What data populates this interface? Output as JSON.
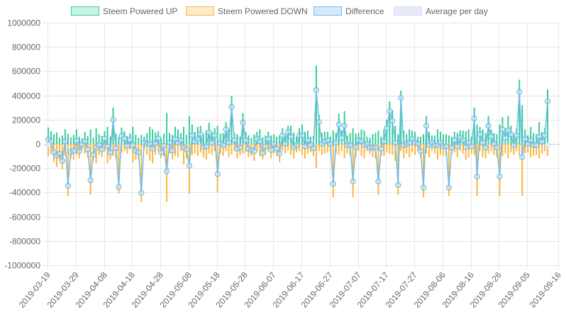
{
  "chart_data": {
    "type": "bar",
    "title": "",
    "xlabel": "",
    "ylabel": "",
    "ylim": [
      -1000000,
      1000000
    ],
    "ytick_labels": [
      "1000000",
      "800000",
      "600000",
      "400000",
      "200000",
      "0",
      "-200000",
      "-400000",
      "-600000",
      "-800000",
      "-1000000"
    ],
    "ytick_values": [
      1000000,
      800000,
      600000,
      400000,
      200000,
      0,
      -200000,
      -400000,
      -600000,
      -800000,
      -1000000
    ],
    "xtick_labels": [
      "2019-03-19",
      "2019-03-29",
      "2019-04-08",
      "2019-04-18",
      "2019-04-28",
      "2019-05-08",
      "2019-05-18",
      "2019-05-28",
      "2019-06-07",
      "2019-06-17",
      "2019-06-27",
      "2019-07-07",
      "2019-07-17",
      "2019-07-27",
      "2019-08-06",
      "2019-08-16",
      "2019-08-26",
      "2019-09-05",
      "2019-09-16"
    ],
    "xtick_day_index": [
      0,
      10,
      20,
      30,
      40,
      50,
      60,
      70,
      80,
      90,
      100,
      110,
      120,
      130,
      140,
      150,
      160,
      170,
      181
    ],
    "start_date": "2019-03-19",
    "grid": true,
    "legend_position": "top",
    "legend": [
      {
        "label": "Steem Powered UP",
        "fill": "#c9f4e4",
        "stroke": "#36cc9c"
      },
      {
        "label": "Steem Powered DOWN",
        "fill": "#fdebcc",
        "stroke": "#f9b640"
      },
      {
        "label": "Difference",
        "fill": "#d5e9f8",
        "stroke": "#71bce6"
      },
      {
        "label": "Average per day",
        "fill": "#e8eaf9",
        "stroke": "#d8dbf3"
      }
    ],
    "series": [
      {
        "name": "Steem Powered UP",
        "type": "bar",
        "color": "#36cc9c",
        "values": [
          135000,
          105000,
          80000,
          95000,
          50000,
          70000,
          120000,
          85000,
          55000,
          75000,
          120000,
          60000,
          45000,
          100000,
          65000,
          120000,
          50000,
          130000,
          80000,
          65000,
          105000,
          140000,
          60000,
          300000,
          85000,
          55000,
          135000,
          105000,
          65000,
          85000,
          140000,
          75000,
          50000,
          75000,
          60000,
          90000,
          140000,
          120000,
          95000,
          105000,
          50000,
          85000,
          255000,
          90000,
          75000,
          140000,
          120000,
          90000,
          140000,
          75000,
          230000,
          160000,
          100000,
          140000,
          150000,
          85000,
          110000,
          175000,
          100000,
          130000,
          150000,
          85000,
          90000,
          180000,
          120000,
          395000,
          90000,
          80000,
          60000,
          255000,
          100000,
          70000,
          50000,
          80000,
          100000,
          120000,
          55000,
          70000,
          100000,
          70000,
          80000,
          60000,
          70000,
          130000,
          80000,
          150000,
          150000,
          95000,
          60000,
          130000,
          160000,
          100000,
          110000,
          60000,
          65000,
          645000,
          240000,
          90000,
          100000,
          100000,
          60000,
          110000,
          90000,
          250000,
          110000,
          270000,
          70000,
          90000,
          130000,
          85000,
          90000,
          120000,
          110000,
          60000,
          50000,
          80000,
          90000,
          110000,
          60000,
          120000,
          200000,
          350000,
          280000,
          150000,
          80000,
          440000,
          110000,
          80000,
          120000,
          110000,
          100000,
          60000,
          60000,
          80000,
          230000,
          100000,
          70000,
          70000,
          120000,
          100000,
          80000,
          80000,
          70000,
          60000,
          100000,
          90000,
          110000,
          110000,
          105000,
          120000,
          60000,
          300000,
          160000,
          140000,
          120000,
          90000,
          230000,
          120000,
          90000,
          80000,
          160000,
          220000,
          130000,
          230000,
          150000,
          80000,
          130000,
          530000,
          320000,
          120000,
          70000,
          140000,
          90000,
          80000,
          180000,
          100000,
          130000,
          450000
        ]
      },
      {
        "name": "Steem Powered DOWN",
        "type": "bar",
        "color": "#f9b640",
        "values": [
          -100000,
          -85000,
          -150000,
          -190000,
          -130000,
          -210000,
          -100000,
          -430000,
          -120000,
          -130000,
          -95000,
          -120000,
          -50000,
          -80000,
          -110000,
          -420000,
          -140000,
          -160000,
          -90000,
          -110000,
          -60000,
          -160000,
          -130000,
          -100000,
          -120000,
          -410000,
          -70000,
          -60000,
          -80000,
          -50000,
          -150000,
          -130000,
          -120000,
          -480000,
          -50000,
          -90000,
          -140000,
          -160000,
          -90000,
          -60000,
          -120000,
          -100000,
          -480000,
          -80000,
          -130000,
          -100000,
          -110000,
          -60000,
          -170000,
          -120000,
          -410000,
          -90000,
          -80000,
          -100000,
          -70000,
          -110000,
          -130000,
          -80000,
          -90000,
          -60000,
          -400000,
          -80000,
          -100000,
          -60000,
          -110000,
          -90000,
          -60000,
          -120000,
          -90000,
          -80000,
          -70000,
          -110000,
          -100000,
          -140000,
          -60000,
          -100000,
          -130000,
          -90000,
          -60000,
          -120000,
          -80000,
          -100000,
          -150000,
          -60000,
          -80000,
          -50000,
          -90000,
          -120000,
          -70000,
          -60000,
          -90000,
          -120000,
          -80000,
          -70000,
          -100000,
          -200000,
          -60000,
          -90000,
          -80000,
          -70000,
          -60000,
          -440000,
          -80000,
          -90000,
          -60000,
          -120000,
          -80000,
          -100000,
          -440000,
          -110000,
          -60000,
          -100000,
          -120000,
          -60000,
          -80000,
          -110000,
          -120000,
          -420000,
          -100000,
          -100000,
          -70000,
          -80000,
          -90000,
          -140000,
          -420000,
          -60000,
          -120000,
          -80000,
          -110000,
          -70000,
          -90000,
          -60000,
          -120000,
          -440000,
          -80000,
          -110000,
          -60000,
          -80000,
          -130000,
          -90000,
          -100000,
          -100000,
          -430000,
          -90000,
          -70000,
          -110000,
          -60000,
          -80000,
          -130000,
          -110000,
          -80000,
          -90000,
          -430000,
          -60000,
          -110000,
          -120000,
          -80000,
          -60000,
          -90000,
          -110000,
          -430000,
          -100000,
          -80000,
          -120000,
          -70000,
          -90000,
          -60000,
          -100000,
          -430000,
          -80000,
          -70000,
          -110000,
          -100000,
          -90000,
          -120000,
          -80000,
          -60000,
          -100000
        ]
      }
    ],
    "average_per_day": {
      "name": "Average per day",
      "first_value": -10000,
      "last_value": -10000
    }
  }
}
